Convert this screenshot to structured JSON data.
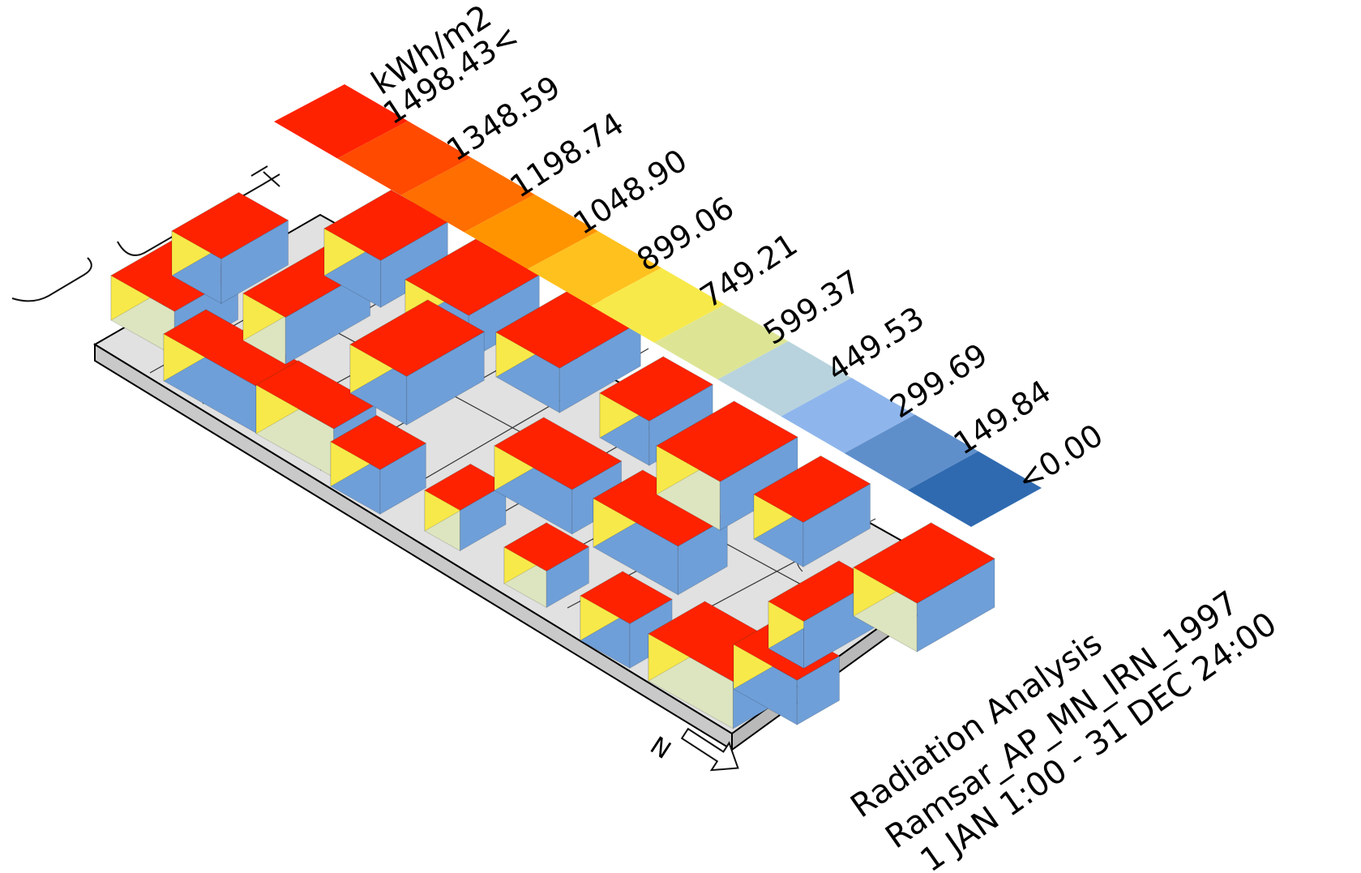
{
  "legend": {
    "unit": "kWh/m2",
    "labels": [
      "1498.43<",
      "1348.59",
      "1198.74",
      "1048.90",
      "899.06",
      "749.21",
      "599.37",
      "449.53",
      "299.69",
      "149.84",
      "<0.00"
    ],
    "colors": [
      "#ff2200",
      "#ff4a00",
      "#ff6e00",
      "#ff9400",
      "#ffc11e",
      "#f8e94a",
      "#dde594",
      "#b8d3dd",
      "#8fb6ec",
      "#5f8fcb",
      "#2f6ab0"
    ]
  },
  "info": {
    "line1": "Radiation Analysis",
    "line2": "Ramsar_AP_MN_IRN_1997",
    "line3": "1 JAN 1:00 - 31 DEC 24:00"
  },
  "north": {
    "label": "N"
  },
  "surface_colors": {
    "roof": "#ff2200",
    "south_face": "#f8e94a",
    "east_face": "#6f9fd8",
    "shaded_face": "#dde5c0",
    "ground": "#dcdcdc",
    "block_edge": "#000000"
  }
}
